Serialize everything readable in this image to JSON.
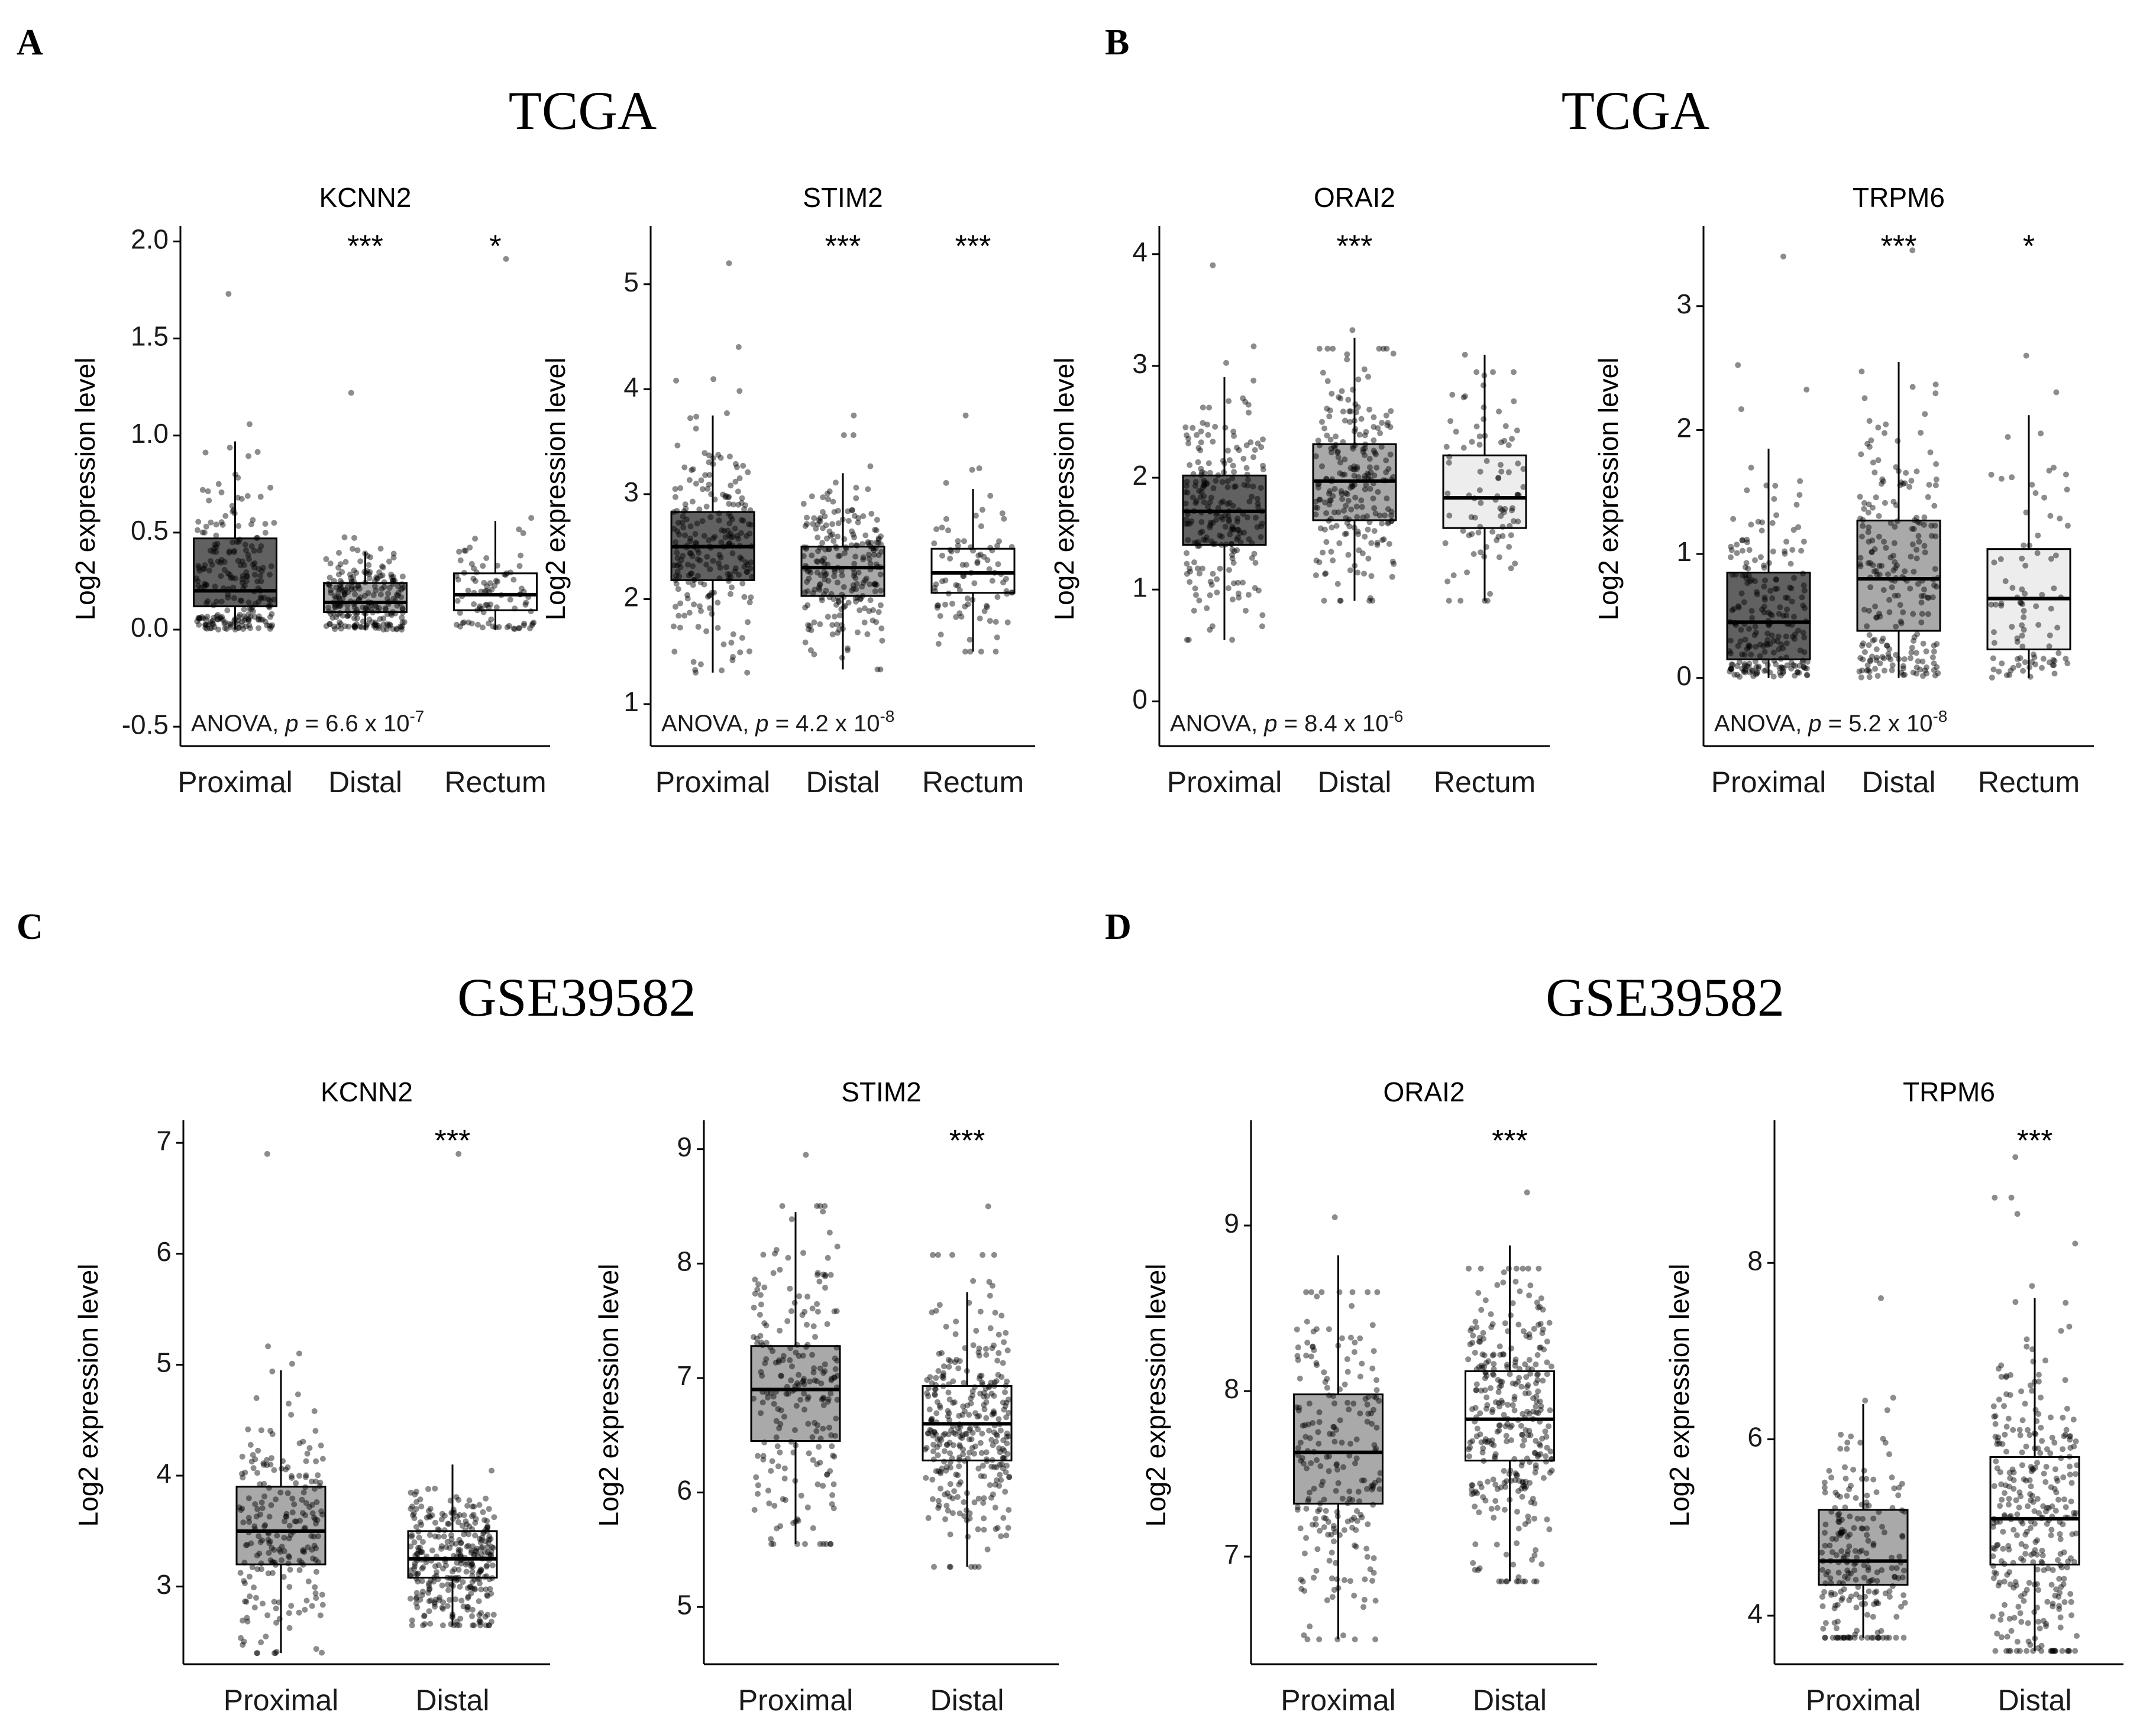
{
  "colors": {
    "dark": "#616161",
    "mid": "#a9a9a9",
    "light": "#ededed",
    "white": "#ffffff"
  },
  "sections": [
    {
      "letter": "A",
      "dataset": "TCGA"
    },
    {
      "letter": "B",
      "dataset": "TCGA"
    },
    {
      "letter": "C",
      "dataset": "GSE39582"
    },
    {
      "letter": "D",
      "dataset": "GSE39582"
    }
  ],
  "chart_data": [
    {
      "type": "box",
      "section": "A",
      "title": "KCNN2",
      "ylabel": "Log2 expression level",
      "ylim": [
        -0.6,
        2.05
      ],
      "yticks": [
        "-0.5",
        "0.0",
        "0.5",
        "1.0",
        "1.5",
        "2.0"
      ],
      "categories": [
        "Proximal",
        "Distal",
        "Rectum"
      ],
      "significance": [
        "",
        "***",
        "*"
      ],
      "annotation": {
        "prefix": "ANOVA, ",
        "p": "p",
        "eq": " = 6.6 x 10",
        "exp": "-7"
      },
      "boxes": [
        {
          "q1": 0.12,
          "median": 0.2,
          "q3": 0.47,
          "whisker_low": 0.0,
          "whisker_high": 0.97,
          "fill": "#616161",
          "n": 230,
          "max_point": 1.73
        },
        {
          "q1": 0.09,
          "median": 0.14,
          "q3": 0.24,
          "whisker_low": 0.0,
          "whisker_high": 0.4,
          "fill": "#a9a9a9",
          "n": 230,
          "max_point": 1.22
        },
        {
          "q1": 0.1,
          "median": 0.18,
          "q3": 0.29,
          "whisker_low": 0.0,
          "whisker_high": 0.56,
          "fill": "#ffffff",
          "n": 90,
          "max_point": 1.91
        }
      ]
    },
    {
      "type": "box",
      "section": "A",
      "title": "STIM2",
      "ylabel": "Log2 expression level",
      "ylim": [
        0.6,
        5.5
      ],
      "yticks": [
        "1",
        "2",
        "3",
        "4",
        "5"
      ],
      "categories": [
        "Proximal",
        "Distal",
        "Rectum"
      ],
      "significance": [
        "",
        "***",
        "***"
      ],
      "annotation": {
        "prefix": "ANOVA, ",
        "p": "p",
        "eq": " = 4.2 x 10",
        "exp": "-8"
      },
      "boxes": [
        {
          "q1": 2.18,
          "median": 2.5,
          "q3": 2.83,
          "whisker_low": 1.3,
          "whisker_high": 3.75,
          "fill": "#616161",
          "n": 230,
          "max_point": 5.2
        },
        {
          "q1": 2.03,
          "median": 2.3,
          "q3": 2.5,
          "whisker_low": 1.33,
          "whisker_high": 3.2,
          "fill": "#a9a9a9",
          "n": 230,
          "max_point": 3.75
        },
        {
          "q1": 2.06,
          "median": 2.25,
          "q3": 2.48,
          "whisker_low": 1.5,
          "whisker_high": 3.05,
          "fill": "#ffffff",
          "n": 90,
          "max_point": 3.75
        }
      ]
    },
    {
      "type": "box",
      "section": "B",
      "title": "ORAI2",
      "ylabel": "Log2 expression level",
      "ylim": [
        -0.4,
        4.2
      ],
      "yticks": [
        "0",
        "1",
        "2",
        "3",
        "4"
      ],
      "categories": [
        "Proximal",
        "Distal",
        "Rectum"
      ],
      "significance": [
        "",
        "***",
        ""
      ],
      "annotation": {
        "prefix": "ANOVA, ",
        "p": "p",
        "eq": " = 8.4 x 10",
        "exp": "-6"
      },
      "boxes": [
        {
          "q1": 1.4,
          "median": 1.7,
          "q3": 2.02,
          "whisker_low": 0.55,
          "whisker_high": 2.9,
          "fill": "#616161",
          "n": 230,
          "max_point": 3.9
        },
        {
          "q1": 1.62,
          "median": 1.97,
          "q3": 2.3,
          "whisker_low": 0.9,
          "whisker_high": 3.25,
          "fill": "#a9a9a9",
          "n": 230,
          "max_point": 3.32
        },
        {
          "q1": 1.55,
          "median": 1.82,
          "q3": 2.2,
          "whisker_low": 0.9,
          "whisker_high": 3.1,
          "fill": "#ededed",
          "n": 90,
          "max_point": 3.1
        }
      ]
    },
    {
      "type": "box",
      "section": "B",
      "title": "TRPM6",
      "ylabel": "Log2 expression level",
      "ylim": [
        -0.55,
        3.6
      ],
      "yticks": [
        "0",
        "1",
        "2",
        "3"
      ],
      "categories": [
        "Proximal",
        "Distal",
        "Rectum"
      ],
      "significance": [
        "",
        "***",
        "*"
      ],
      "annotation": {
        "prefix": "ANOVA, ",
        "p": "p",
        "eq": " = 5.2 x 10",
        "exp": "-8"
      },
      "boxes": [
        {
          "q1": 0.15,
          "median": 0.45,
          "q3": 0.85,
          "whisker_low": 0.0,
          "whisker_high": 1.85,
          "fill": "#616161",
          "n": 230,
          "max_point": 3.4
        },
        {
          "q1": 0.38,
          "median": 0.8,
          "q3": 1.27,
          "whisker_low": 0.0,
          "whisker_high": 2.55,
          "fill": "#a9a9a9",
          "n": 230,
          "max_point": 3.45
        },
        {
          "q1": 0.23,
          "median": 0.64,
          "q3": 1.04,
          "whisker_low": 0.0,
          "whisker_high": 2.12,
          "fill": "#ededed",
          "n": 90,
          "max_point": 2.6
        }
      ]
    },
    {
      "type": "box",
      "section": "C",
      "title": "KCNN2",
      "ylabel": "Log2 expression level",
      "ylim": [
        2.3,
        7.15
      ],
      "yticks": [
        "3",
        "4",
        "5",
        "6",
        "7"
      ],
      "categories": [
        "Proximal",
        "Distal"
      ],
      "significance": [
        "",
        "***"
      ],
      "annotation": null,
      "boxes": [
        {
          "q1": 3.2,
          "median": 3.5,
          "q3": 3.9,
          "whisker_low": 2.4,
          "whisker_high": 4.95,
          "fill": "#a9a9a9",
          "n": 220,
          "max_point": 6.9
        },
        {
          "q1": 3.08,
          "median": 3.25,
          "q3": 3.5,
          "whisker_low": 2.65,
          "whisker_high": 4.1,
          "fill": "#ffffff",
          "n": 320,
          "max_point": 6.9
        }
      ]
    },
    {
      "type": "box",
      "section": "C",
      "title": "STIM2",
      "ylabel": "Log2 expression level",
      "ylim": [
        4.5,
        9.2
      ],
      "yticks": [
        "5",
        "6",
        "7",
        "8",
        "9"
      ],
      "categories": [
        "Proximal",
        "Distal"
      ],
      "significance": [
        "",
        "***"
      ],
      "annotation": null,
      "boxes": [
        {
          "q1": 6.45,
          "median": 6.9,
          "q3": 7.28,
          "whisker_low": 5.55,
          "whisker_high": 8.45,
          "fill": "#a9a9a9",
          "n": 220,
          "max_point": 8.95
        },
        {
          "q1": 6.28,
          "median": 6.6,
          "q3": 6.93,
          "whisker_low": 5.35,
          "whisker_high": 7.75,
          "fill": "#ffffff",
          "n": 320,
          "max_point": 8.5
        }
      ]
    },
    {
      "type": "box",
      "section": "D",
      "title": "ORAI2",
      "ylabel": "Log2 expression level",
      "ylim": [
        6.35,
        9.6
      ],
      "yticks": [
        "7",
        "8",
        "9"
      ],
      "categories": [
        "Proximal",
        "Distal"
      ],
      "significance": [
        "",
        "***"
      ],
      "annotation": null,
      "boxes": [
        {
          "q1": 7.32,
          "median": 7.63,
          "q3": 7.98,
          "whisker_low": 6.5,
          "whisker_high": 8.82,
          "fill": "#a9a9a9",
          "n": 220,
          "max_point": 9.05
        },
        {
          "q1": 7.58,
          "median": 7.83,
          "q3": 8.12,
          "whisker_low": 6.85,
          "whisker_high": 8.88,
          "fill": "#ffffff",
          "n": 320,
          "max_point": 9.2
        }
      ]
    },
    {
      "type": "box",
      "section": "D",
      "title": "TRPM6",
      "ylabel": "Log2 expression level",
      "ylim": [
        3.45,
        9.55
      ],
      "yticks": [
        "4",
        "6",
        "8"
      ],
      "categories": [
        "Proximal",
        "Distal"
      ],
      "significance": [
        "",
        "***"
      ],
      "annotation": null,
      "boxes": [
        {
          "q1": 4.35,
          "median": 4.62,
          "q3": 5.2,
          "whisker_low": 3.75,
          "whisker_high": 6.4,
          "fill": "#a9a9a9",
          "n": 220,
          "max_point": 7.6
        },
        {
          "q1": 4.58,
          "median": 5.1,
          "q3": 5.8,
          "whisker_low": 3.6,
          "whisker_high": 7.6,
          "fill": "#ffffff",
          "n": 320,
          "max_point": 9.2
        }
      ]
    }
  ]
}
